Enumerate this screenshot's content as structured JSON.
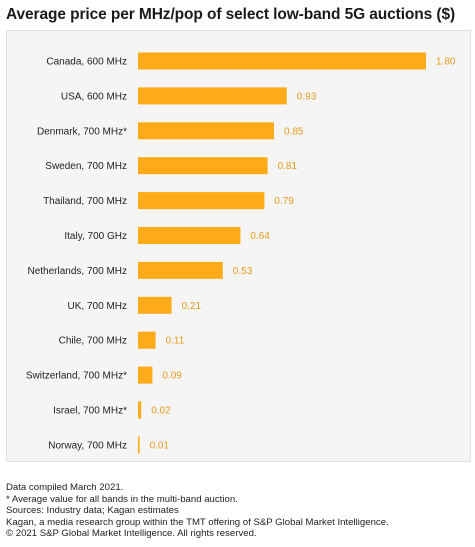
{
  "chart_data": {
    "type": "bar",
    "orientation": "horizontal",
    "title": "Average price per MHz/pop of select low-band 5G auctions ($)",
    "categories": [
      "Canada, 600 MHz",
      "USA, 600 MHz",
      "Denmark, 700 MHz*",
      "Sweden, 700 MHz",
      "Thailand, 700 MHz",
      "Italy, 700 GHz",
      "Netherlands, 700 MHz",
      "UK, 700 MHz",
      "Chile, 700 MHz",
      "Switzerland, 700 MHz*",
      "Israel, 700 MHz*",
      "Norway, 700 MHz"
    ],
    "values": [
      1.8,
      0.93,
      0.85,
      0.81,
      0.79,
      0.64,
      0.53,
      0.21,
      0.11,
      0.09,
      0.02,
      0.01
    ],
    "value_labels": [
      "1.80",
      "0.93",
      "0.85",
      "0.81",
      "0.79",
      "0.64",
      "0.53",
      "0.21",
      "0.11",
      "0.09",
      "0.02",
      "0.01"
    ],
    "xlim": [
      0,
      1.8
    ],
    "grid": false,
    "legend": "none",
    "bar_color": "#ffab19",
    "label_color": "#e89a1c"
  },
  "footer": {
    "line1": "Data compiled March 2021.",
    "line2": "* Average value for all bands in the multi-band auction.",
    "line3": "Sources: Industry data; Kagan estimates",
    "line4": "Kagan, a media research group within the TMT offering of S&P Global Market Intelligence.",
    "line5": "© 2021 S&P Global Market Intelligence. All rights reserved."
  }
}
